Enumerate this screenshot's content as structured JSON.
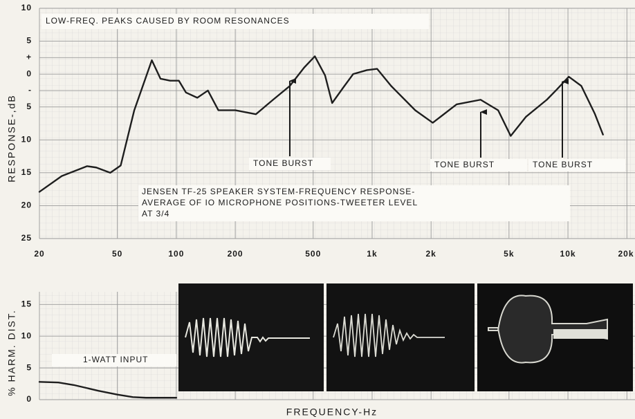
{
  "chart_data": [
    {
      "type": "line",
      "xlog": true,
      "grid": true,
      "ylabel": "RESPONSE-,dB",
      "annotations": [
        "LOW-FREQ. PEAKS CAUSED BY ROOM RESONANCES",
        "TONE BURST",
        "TONE BURST",
        "TONE BURST"
      ],
      "note": [
        "JENSEN TF-25 SPEAKER SYSTEM-FREQUENCY RESPONSE-",
        "AVERAGE OF IO MICROPHONE POSITIONS-TWEETER LEVEL",
        "AT 3/4"
      ],
      "xlim": [
        20,
        22000
      ],
      "xticks": [
        20,
        50,
        100,
        200,
        500,
        {
          "value": 1000,
          "label": "1k"
        },
        {
          "value": 2000,
          "label": "2k"
        },
        {
          "value": 5000,
          "label": "5k"
        },
        {
          "value": 10000,
          "label": "10k"
        },
        {
          "value": 20000,
          "label": "20k"
        }
      ],
      "ylim": [
        -25,
        10
      ],
      "yticks": [
        10,
        5,
        {
          "value": 2.5,
          "label": "+"
        },
        0,
        {
          "value": -2.5,
          "label": "-"
        },
        {
          "value": -5,
          "label": "5"
        },
        {
          "value": -10,
          "label": "10"
        },
        {
          "value": -15,
          "label": "15"
        },
        {
          "value": -20,
          "label": "20"
        },
        {
          "value": -25,
          "label": "25"
        }
      ],
      "x": [
        20,
        26,
        35,
        39,
        46,
        52,
        61,
        75,
        83,
        93,
        103,
        112,
        128,
        145,
        164,
        200,
        255,
        312,
        380,
        450,
        510,
        575,
        625,
        710,
        800,
        940,
        1060,
        1250,
        1660,
        2040,
        2700,
        3580,
        4400,
        5100,
        6100,
        7800,
        8800,
        10100,
        11700,
        13700,
        15100
      ],
      "series": [
        {
          "color": "#1e1e1e",
          "values": [
            -17.9,
            -15.5,
            -14,
            -14.2,
            -15,
            -13.9,
            -5.5,
            2.1,
            -0.7,
            -1,
            -1,
            -2.8,
            -3.6,
            -2.5,
            -5.5,
            -5.5,
            -6.1,
            -3.9,
            -1.8,
            1,
            2.7,
            -0.2,
            -4.4,
            -2.1,
            0,
            0.6,
            0.8,
            -1.8,
            -5.5,
            -7.4,
            -4.6,
            -3.9,
            -5.5,
            -9.4,
            -6.5,
            -3.9,
            -2.3,
            -0.4,
            -1.8,
            -6,
            -9.2
          ]
        }
      ]
    },
    {
      "type": "line",
      "xlog": true,
      "grid": true,
      "ylabel": "% HARM. DIST.",
      "xlabel": "FREQUENCY-Hz",
      "annotation": "1-WATT INPUT",
      "xlim": [
        20,
        22000
      ],
      "ylim": [
        0,
        17
      ],
      "yticks": [
        0,
        5,
        10,
        15
      ],
      "x": [
        20,
        25,
        30,
        40,
        50,
        60,
        70,
        80,
        100
      ],
      "series": [
        {
          "color": "#1e1e1e",
          "values": [
            2.8,
            2.7,
            2.3,
            1.4,
            0.8,
            0.4,
            0.3,
            0.3,
            0.3
          ]
        }
      ]
    }
  ]
}
